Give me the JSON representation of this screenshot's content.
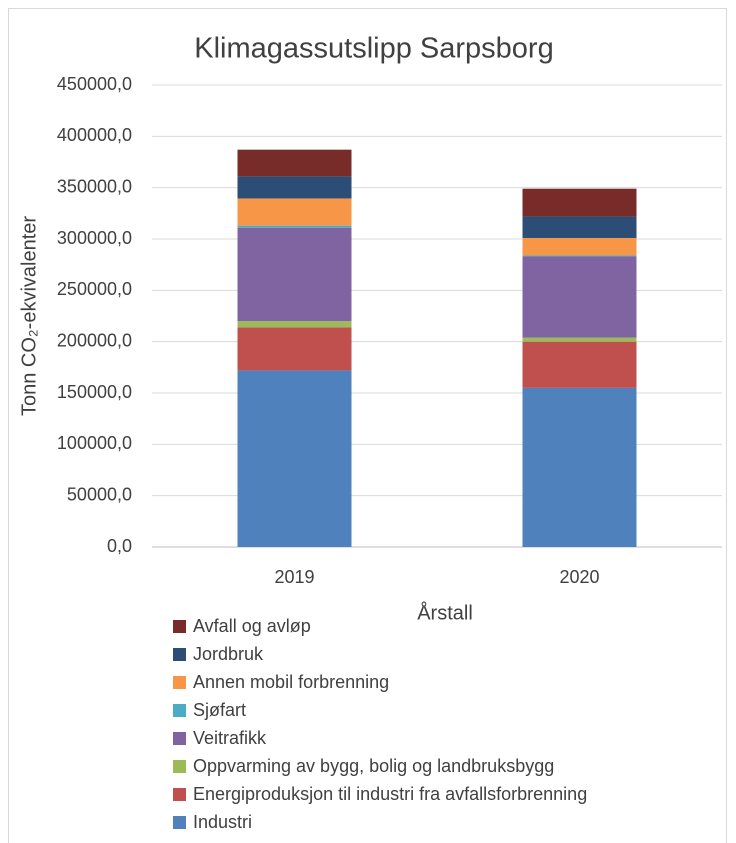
{
  "chart_data": {
    "type": "stacked_bar",
    "title": "Klimagassutslipp Sarpsborg",
    "x_label": "Årstall",
    "y_label": "Tonn CO₂-ekvivalenter",
    "categories": [
      "2019",
      "2020"
    ],
    "series": [
      {
        "name": "Industri",
        "color": "#4f81bd",
        "values": [
          172000,
          155000
        ]
      },
      {
        "name": "Energiproduksjon til industri fra avfallsforbrenning",
        "color": "#c0504d",
        "values": [
          42000,
          45000
        ]
      },
      {
        "name": "Oppvarming av bygg, bolig og landbruksbygg",
        "color": "#9bbb59",
        "values": [
          6000,
          4000
        ]
      },
      {
        "name": "Veitrafikk",
        "color": "#8064a2",
        "values": [
          91000,
          79000
        ]
      },
      {
        "name": "Sjøfart",
        "color": "#4bacc6",
        "values": [
          2000,
          1000
        ]
      },
      {
        "name": "Annen mobil forbrenning",
        "color": "#f79646",
        "values": [
          26500,
          17000
        ]
      },
      {
        "name": "Jordbruk",
        "color": "#2c4d75",
        "values": [
          21500,
          21000
        ]
      },
      {
        "name": "Avfall og avløp",
        "color": "#772c2a",
        "values": [
          26000,
          27000
        ]
      }
    ],
    "ylim": [
      0,
      450000
    ],
    "yticks": [
      {
        "value": 0,
        "label": "0,0"
      },
      {
        "value": 50000,
        "label": "50000,0"
      },
      {
        "value": 100000,
        "label": "100000,0"
      },
      {
        "value": 150000,
        "label": "150000,0"
      },
      {
        "value": 200000,
        "label": "200000,0"
      },
      {
        "value": 250000,
        "label": "250000,0"
      },
      {
        "value": 300000,
        "label": "300000,0"
      },
      {
        "value": 350000,
        "label": "350000,0"
      },
      {
        "value": 400000,
        "label": "400000,0"
      },
      {
        "value": 450000,
        "label": "450000,0"
      }
    ],
    "grid": true
  }
}
